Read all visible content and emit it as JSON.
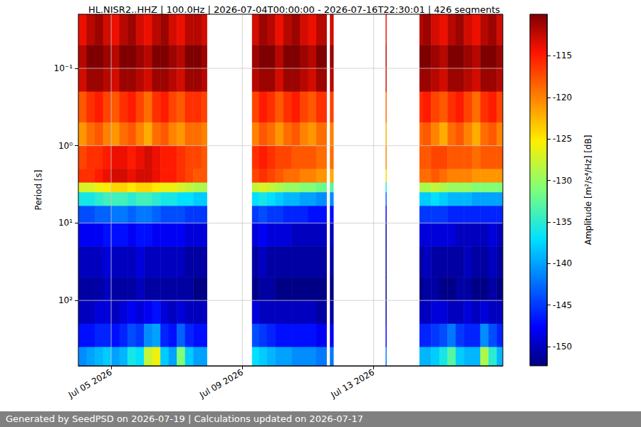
{
  "chart_data": {
    "type": "heatmap",
    "title": "HL.NISR2..HHZ | 100.0Hz | 2026-07-04T00:00:00 - 2026-07-16T22:30:01 | 426 segments",
    "footer": "Generated by SeedPSD on 2026-07-19 | Calculations updated on 2026-07-17",
    "ylabel": "Period [s]",
    "log": "y",
    "grid": true,
    "xlim": [
      "2026-07-04T00:00:00",
      "2026-07-16T22:30:01"
    ],
    "xticks": [
      {
        "value": "2026-07-05T00:00:00",
        "label": "Jul 05 2026"
      },
      {
        "value": "2026-07-09T00:00:00",
        "label": "Jul 09 2026"
      },
      {
        "value": "2026-07-13T00:00:00",
        "label": "Jul 13 2026"
      }
    ],
    "ylim": [
      0.02,
      700
    ],
    "yticks": [
      {
        "value": 0.1,
        "label": "10⁻¹"
      },
      {
        "value": 1,
        "label": "10⁰"
      },
      {
        "value": 10,
        "label": "10¹"
      },
      {
        "value": 100,
        "label": "10²"
      }
    ],
    "x_edges": [
      "2026-07-04T00:00:00",
      "2026-07-04T06:00:00",
      "2026-07-04T12:00:00",
      "2026-07-04T18:00:00",
      "2026-07-05T00:00:00",
      "2026-07-05T06:00:00",
      "2026-07-05T12:00:00",
      "2026-07-05T18:00:00",
      "2026-07-06T00:00:00",
      "2026-07-06T06:00:00",
      "2026-07-06T12:00:00",
      "2026-07-06T18:00:00",
      "2026-07-07T00:00:00",
      "2026-07-07T06:00:00",
      "2026-07-07T12:00:00",
      "2026-07-07T18:00:00",
      "2026-07-07T22:00:00",
      "2026-07-09T07:00:00",
      "2026-07-09T12:00:00",
      "2026-07-09T18:00:00",
      "2026-07-10T00:00:00",
      "2026-07-10T06:00:00",
      "2026-07-10T12:00:00",
      "2026-07-10T18:00:00",
      "2026-07-11T00:00:00",
      "2026-07-11T06:00:00",
      "2026-07-11T13:30:00",
      "2026-07-11T16:00:00",
      "2026-07-11T18:30:00",
      "2026-07-13T08:45:00",
      "2026-07-13T09:15:00",
      "2026-07-14T09:30:00",
      "2026-07-14T12:00:00",
      "2026-07-14T18:00:00",
      "2026-07-15T00:00:00",
      "2026-07-15T06:00:00",
      "2026-07-15T12:00:00",
      "2026-07-15T18:00:00",
      "2026-07-16T00:00:00",
      "2026-07-16T06:00:00",
      "2026-07-16T12:00:00",
      "2026-07-16T18:00:00",
      "2026-07-16T22:30:01"
    ],
    "y_edges": [
      0.02,
      0.05,
      0.1,
      0.2,
      0.5,
      1,
      2,
      3,
      4,
      6,
      10,
      20,
      50,
      100,
      200,
      400,
      700
    ],
    "cells": [
      [
        -114,
        -112,
        -111,
        -113,
        -114,
        -112,
        -111,
        -113,
        -114,
        -112,
        -111,
        -113,
        -114,
        -112,
        -112,
        -113,
        null,
        -113,
        -111,
        -112,
        -114,
        -112,
        -111,
        -113,
        -114,
        -112,
        null,
        -113,
        null,
        -114,
        null,
        -112,
        -111,
        -113,
        -114,
        -112,
        -111,
        -113,
        -114,
        -112,
        -111,
        -113
      ],
      [
        -112,
        -110,
        -110,
        -111,
        -112,
        -110,
        -110,
        -111,
        -112,
        -110,
        -110,
        -111,
        -112,
        -110,
        -110,
        -111,
        null,
        -111,
        -110,
        -110,
        -112,
        -110,
        -110,
        -111,
        -112,
        -110,
        null,
        -111,
        null,
        -112,
        null,
        -110,
        -110,
        -111,
        -112,
        -110,
        -110,
        -111,
        -112,
        -110,
        -110,
        -111
      ],
      [
        -113,
        -111,
        -111,
        -112,
        -113,
        -111,
        -111,
        -112,
        -113,
        -111,
        -111,
        -112,
        -113,
        -111,
        -111,
        -112,
        null,
        -112,
        -111,
        -111,
        -113,
        -111,
        -111,
        -112,
        -113,
        -111,
        null,
        -112,
        null,
        -113,
        null,
        -111,
        -111,
        -112,
        -113,
        -111,
        -111,
        -112,
        -113,
        -111,
        -111,
        -112
      ],
      [
        -118,
        -116,
        -115,
        -117,
        -118,
        -116,
        -115,
        -117,
        -119,
        -116,
        -115,
        -117,
        -118,
        -116,
        -116,
        -117,
        null,
        -117,
        -115,
        -116,
        -118,
        -116,
        -115,
        -117,
        -118,
        -116,
        null,
        -117,
        null,
        -119,
        null,
        -116,
        -115,
        -117,
        -118,
        -116,
        -115,
        -117,
        -119,
        -116,
        -115,
        -117
      ],
      [
        -121,
        -119,
        -118,
        -120,
        -121,
        -119,
        -118,
        -120,
        -122,
        -119,
        -118,
        -120,
        -121,
        -119,
        -119,
        -120,
        null,
        -120,
        -118,
        -119,
        -121,
        -119,
        -118,
        -120,
        -121,
        -119,
        null,
        -120,
        null,
        -122,
        null,
        -119,
        -118,
        -120,
        -122,
        -119,
        -118,
        -120,
        -122,
        -119,
        -118,
        -120
      ],
      [
        -117,
        -116,
        -116,
        -115,
        -114,
        -114,
        -115,
        -114,
        -113,
        -114,
        -115,
        -115,
        -116,
        -117,
        -117,
        -118,
        null,
        -116,
        -115,
        -116,
        -117,
        -117,
        -118,
        -118,
        -118,
        -119,
        null,
        -119,
        null,
        -120,
        null,
        -118,
        -118,
        -117,
        -117,
        -118,
        -118,
        -118,
        -119,
        -118,
        -118,
        -118
      ],
      [
        -116,
        -116,
        -115,
        -114,
        -113,
        -113,
        -114,
        -113,
        -113,
        -114,
        -115,
        -115,
        -116,
        -117,
        -118,
        -118,
        null,
        -117,
        -116,
        -117,
        -118,
        -119,
        -119,
        -120,
        -120,
        -121,
        null,
        -122,
        null,
        -124,
        null,
        -119,
        -119,
        -118,
        -119,
        -120,
        -120,
        -120,
        -121,
        -121,
        -121,
        -121
      ],
      [
        -127,
        -127,
        -126,
        -125,
        -124,
        -124,
        -125,
        -124,
        -124,
        -125,
        -126,
        -126,
        -127,
        -128,
        -129,
        -129,
        null,
        -128,
        -127,
        -128,
        -129,
        -130,
        -130,
        -131,
        -131,
        -132,
        null,
        -133,
        null,
        -136,
        null,
        -129,
        -129,
        -128,
        -129,
        -130,
        -130,
        -130,
        -131,
        -131,
        -131,
        -131
      ],
      [
        -136,
        -136,
        -135,
        -134,
        -134,
        -134,
        -135,
        -134,
        -134,
        -135,
        -136,
        -136,
        -137,
        -137,
        -138,
        -138,
        null,
        -137,
        -136,
        -137,
        -138,
        -139,
        -139,
        -140,
        -140,
        -141,
        null,
        -141,
        null,
        -143,
        null,
        -138,
        -138,
        -137,
        -138,
        -139,
        -139,
        -139,
        -140,
        -140,
        -140,
        -140
      ],
      [
        -144,
        -144,
        -143,
        -143,
        -142,
        -142,
        -143,
        -142,
        -142,
        -143,
        -144,
        -144,
        -144,
        -145,
        -145,
        -145,
        null,
        -145,
        -144,
        -145,
        -145,
        -146,
        -146,
        -146,
        -147,
        -147,
        null,
        -147,
        null,
        -148,
        null,
        -145,
        -145,
        -145,
        -145,
        -146,
        -146,
        -146,
        -146,
        -146,
        -146,
        -146
      ],
      [
        -148,
        -148,
        -148,
        -147,
        -147,
        -147,
        -148,
        -147,
        -147,
        -148,
        -148,
        -148,
        -148,
        -149,
        -149,
        -149,
        null,
        -149,
        -148,
        -149,
        -149,
        -149,
        -150,
        -150,
        -150,
        -150,
        null,
        -150,
        null,
        -151,
        null,
        -149,
        -149,
        -149,
        -149,
        -149,
        -150,
        -150,
        -150,
        -150,
        -149,
        -150
      ],
      [
        -150,
        -150,
        -150,
        -149,
        -150,
        -150,
        -150,
        -149,
        -150,
        -150,
        -150,
        -150,
        -150,
        -151,
        -151,
        -151,
        null,
        -151,
        -150,
        -151,
        -151,
        -151,
        -151,
        -151,
        -151,
        -151,
        null,
        -151,
        null,
        -151,
        null,
        -151,
        -150,
        -151,
        -151,
        -151,
        -151,
        -150,
        -151,
        -151,
        -150,
        -151
      ],
      [
        -151,
        -151,
        -151,
        -150,
        -151,
        -151,
        -151,
        -150,
        -151,
        -151,
        -151,
        -151,
        -151,
        -151,
        -152,
        -152,
        null,
        -152,
        -151,
        -151,
        -152,
        -152,
        -152,
        -152,
        -152,
        -152,
        null,
        -152,
        null,
        -152,
        null,
        -152,
        -151,
        -151,
        -152,
        -152,
        -151,
        -151,
        -152,
        -152,
        -151,
        -152
      ],
      [
        -150,
        -150,
        -149,
        -149,
        -150,
        -149,
        -148,
        -149,
        -148,
        -147,
        -149,
        -150,
        -149,
        -150,
        -150,
        -150,
        null,
        -149,
        -150,
        -150,
        -150,
        -150,
        -150,
        -150,
        -150,
        -151,
        null,
        -151,
        null,
        -151,
        null,
        -150,
        -150,
        -149,
        -149,
        -150,
        -150,
        -149,
        -150,
        -149,
        -150,
        -150
      ],
      [
        -147,
        -147,
        -146,
        -146,
        -147,
        -146,
        -144,
        -145,
        -141,
        -140,
        -146,
        -147,
        -143,
        -146,
        -147,
        -147,
        null,
        -144,
        -145,
        -146,
        -147,
        -147,
        -147,
        -147,
        -147,
        -148,
        null,
        -148,
        null,
        -148,
        null,
        -146,
        -146,
        -145,
        -144,
        -142,
        -145,
        -146,
        -146,
        -141,
        -144,
        -146
      ],
      [
        -141,
        -140,
        -139,
        -138,
        -140,
        -139,
        -136,
        -137,
        -128,
        -126,
        -138,
        -140,
        -131,
        -138,
        -140,
        -140,
        null,
        -137,
        -138,
        -139,
        -140,
        -140,
        -141,
        -141,
        -141,
        -142,
        null,
        -142,
        null,
        -142,
        null,
        -139,
        -139,
        -138,
        -136,
        -133,
        -138,
        -139,
        -139,
        -129,
        -135,
        -139
      ]
    ],
    "colorbar": {
      "label": "Amplitude [m²/s⁴/Hz] [dB]",
      "lim": [
        -152.3,
        -110
      ],
      "ticks": [
        -150,
        -145,
        -140,
        -135,
        -130,
        -125,
        -120,
        -115
      ]
    }
  }
}
